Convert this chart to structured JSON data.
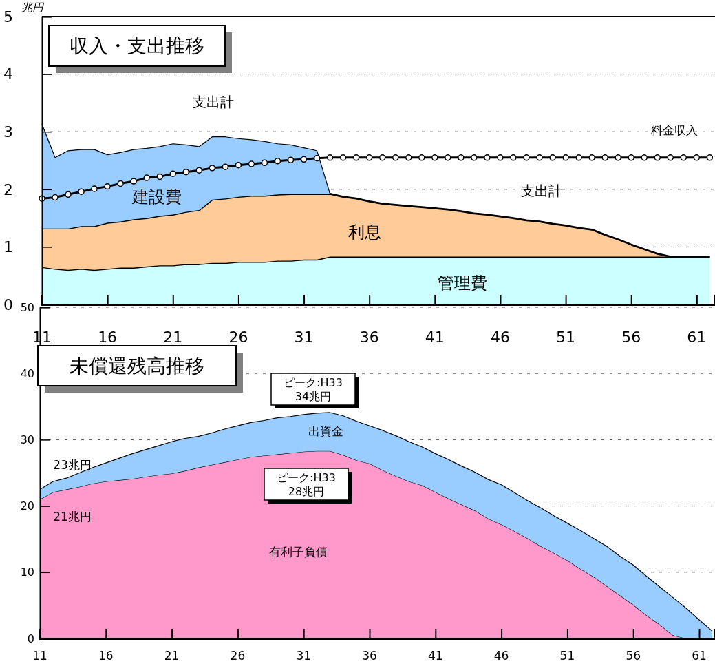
{
  "chart_data": [
    {
      "type": "area",
      "title": "収入・支出推移",
      "ylabel": "兆円",
      "stacked": true,
      "grid": "y",
      "x": [
        11,
        12,
        13,
        14,
        15,
        16,
        17,
        18,
        19,
        20,
        21,
        22,
        23,
        24,
        25,
        26,
        27,
        28,
        29,
        30,
        31,
        32,
        33,
        34,
        35,
        36,
        37,
        38,
        39,
        40,
        41,
        42,
        43,
        44,
        45,
        46,
        47,
        48,
        49,
        50,
        51,
        52,
        53,
        54,
        55,
        56,
        57,
        58,
        59,
        60,
        61,
        62
      ],
      "xlim": [
        11,
        62.4
      ],
      "xticks": [
        11,
        16,
        21,
        26,
        31,
        36,
        41,
        46,
        51,
        56,
        61
      ],
      "ylim": [
        0,
        5
      ],
      "yticks": [
        0,
        1,
        2,
        3,
        4,
        5
      ],
      "series": [
        {
          "name": "管理費",
          "color": "#ccffff",
          "values": [
            0.65,
            0.62,
            0.6,
            0.62,
            0.6,
            0.62,
            0.64,
            0.64,
            0.66,
            0.68,
            0.68,
            0.7,
            0.7,
            0.72,
            0.72,
            0.74,
            0.74,
            0.74,
            0.76,
            0.76,
            0.78,
            0.78,
            0.83,
            0.83,
            0.83,
            0.83,
            0.83,
            0.83,
            0.83,
            0.83,
            0.83,
            0.83,
            0.83,
            0.83,
            0.83,
            0.83,
            0.83,
            0.83,
            0.83,
            0.83,
            0.83,
            0.83,
            0.83,
            0.83,
            0.83,
            0.83,
            0.83,
            0.83,
            0.83,
            0.83,
            0.83,
            0.83
          ]
        },
        {
          "name": "利息",
          "color": "#ffcc99",
          "values": [
            0.67,
            0.7,
            0.72,
            0.74,
            0.76,
            0.8,
            0.8,
            0.84,
            0.84,
            0.86,
            0.88,
            0.91,
            0.94,
            1.1,
            1.12,
            1.13,
            1.15,
            1.15,
            1.15,
            1.16,
            1.14,
            1.14,
            1.09,
            1.04,
            1.01,
            0.96,
            0.92,
            0.9,
            0.88,
            0.86,
            0.84,
            0.82,
            0.79,
            0.75,
            0.73,
            0.7,
            0.67,
            0.63,
            0.61,
            0.57,
            0.54,
            0.5,
            0.47,
            0.38,
            0.3,
            0.21,
            0.13,
            0.05,
            0,
            0,
            0,
            0
          ]
        },
        {
          "name": "建設費",
          "color": "#99ccff",
          "values": [
            1.81,
            1.23,
            1.35,
            1.33,
            1.33,
            1.18,
            1.2,
            1.21,
            1.21,
            1.2,
            1.23,
            1.16,
            1.1,
            1.09,
            1.07,
            1.01,
            0.97,
            0.94,
            0.88,
            0.85,
            0.8,
            0.75,
            0,
            0,
            0,
            0,
            0,
            0,
            0,
            0,
            0,
            0,
            0,
            0,
            0,
            0,
            0,
            0,
            0,
            0,
            0,
            0,
            0,
            0,
            0,
            0,
            0,
            0,
            0,
            0,
            0,
            0
          ]
        },
        {
          "name": "料金収入",
          "type": "line",
          "color": "#000000",
          "marker": "circle",
          "values": [
            1.84,
            1.86,
            1.91,
            1.96,
            2.01,
            2.05,
            2.1,
            2.14,
            2.2,
            2.22,
            2.27,
            2.3,
            2.33,
            2.37,
            2.39,
            2.42,
            2.44,
            2.46,
            2.49,
            2.51,
            2.52,
            2.54,
            2.55,
            2.55,
            2.55,
            2.55,
            2.55,
            2.55,
            2.55,
            2.55,
            2.55,
            2.55,
            2.55,
            2.55,
            2.55,
            2.55,
            2.55,
            2.55,
            2.55,
            2.55,
            2.55,
            2.55,
            2.55,
            2.55,
            2.55,
            2.55,
            2.55,
            2.55,
            2.55,
            2.55,
            2.55,
            2.55
          ]
        }
      ],
      "annotations": [
        "支出計",
        "支出計"
      ]
    },
    {
      "type": "area",
      "title": "未償還残高推移",
      "stacked": true,
      "grid": "y",
      "x": [
        11,
        12,
        13,
        14,
        15,
        16,
        17,
        18,
        19,
        20,
        21,
        22,
        23,
        24,
        25,
        26,
        27,
        28,
        29,
        30,
        31,
        32,
        33,
        34,
        35,
        36,
        37,
        38,
        39,
        40,
        41,
        42,
        43,
        44,
        45,
        46,
        47,
        48,
        49,
        50,
        51,
        52,
        53,
        54,
        55,
        56,
        57,
        58,
        59,
        60,
        61,
        62
      ],
      "xlim": [
        11,
        62.2
      ],
      "xticks": [
        11,
        16,
        21,
        26,
        31,
        36,
        41,
        46,
        51,
        56,
        61
      ],
      "ylim": [
        0,
        50
      ],
      "yticks": [
        0,
        10,
        20,
        30,
        40,
        50
      ],
      "series": [
        {
          "name": "有利子負債",
          "color": "#ff99cc",
          "values": [
            21.0,
            22.1,
            22.5,
            22.9,
            23.4,
            23.7,
            23.9,
            24.1,
            24.4,
            24.7,
            24.9,
            25.3,
            25.8,
            26.2,
            26.6,
            27.0,
            27.4,
            27.6,
            27.8,
            28.0,
            28.2,
            28.3,
            28.3,
            27.7,
            26.9,
            26.4,
            25.4,
            24.5,
            23.7,
            23.1,
            22.1,
            21.1,
            20.2,
            19.3,
            18.1,
            17.2,
            16.2,
            15.1,
            13.9,
            12.9,
            11.8,
            10.5,
            9.3,
            7.9,
            6.5,
            5.1,
            3.5,
            2.1,
            0.5,
            0,
            0,
            0
          ]
        },
        {
          "name": "出資金",
          "color": "#99ccff",
          "values": [
            1.5,
            1.6,
            1.7,
            2.1,
            2.4,
            2.8,
            3.3,
            3.8,
            4.1,
            4.4,
            4.8,
            4.9,
            4.7,
            4.8,
            5.0,
            5.1,
            5.2,
            5.3,
            5.5,
            5.5,
            5.6,
            5.7,
            5.8,
            5.9,
            5.9,
            5.7,
            6.0,
            6.1,
            6.0,
            5.8,
            5.8,
            5.9,
            5.8,
            5.8,
            5.9,
            6.0,
            5.8,
            5.7,
            5.8,
            5.6,
            5.6,
            5.8,
            5.8,
            6.0,
            5.9,
            6.0,
            5.9,
            5.7,
            5.7,
            4.6,
            2.8,
            1.1
          ]
        }
      ],
      "annotations": [
        "23兆円",
        "21兆円",
        "ピーク:H33\n34兆円",
        "ピーク:H33\n28兆円"
      ]
    }
  ]
}
